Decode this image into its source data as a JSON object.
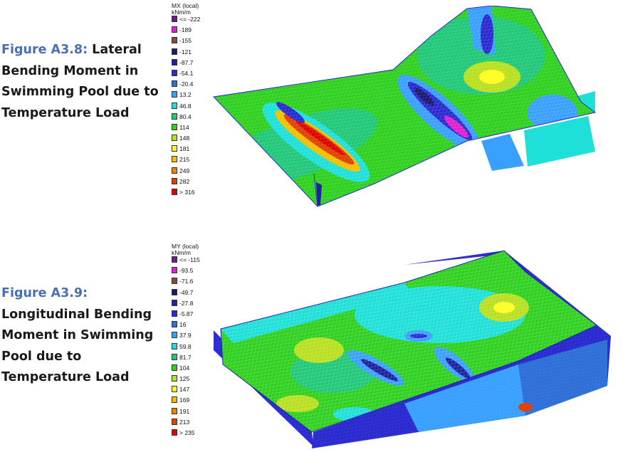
{
  "figure1": {
    "number": "Figure A3.8:",
    "caption_lines": [
      "Lateral",
      "Bending Moment in",
      "Swimming Pool due to",
      "Temperature Load"
    ],
    "legend": {
      "title_lines": [
        "MX (local)",
        "kNm/m"
      ],
      "entries": [
        {
          "label": "<= -222",
          "color": "#6a1b8c"
        },
        {
          "label": "-189",
          "color": "#e020d0"
        },
        {
          "label": "-155",
          "color": "#8a4a3a"
        },
        {
          "label": "-121",
          "color": "#1a1a6a"
        },
        {
          "label": "-87.7",
          "color": "#2020a0"
        },
        {
          "label": "-54.1",
          "color": "#2a2ad0"
        },
        {
          "label": "-20.4",
          "color": "#2f6fd8"
        },
        {
          "label": "13.2",
          "color": "#3aa0ff"
        },
        {
          "label": "46.8",
          "color": "#1fe0d8"
        },
        {
          "label": "80.4",
          "color": "#20c878"
        },
        {
          "label": "114",
          "color": "#30d020"
        },
        {
          "label": "148",
          "color": "#b8e020"
        },
        {
          "label": "181",
          "color": "#ffff20"
        },
        {
          "label": "215",
          "color": "#f0c000"
        },
        {
          "label": "249",
          "color": "#f08000"
        },
        {
          "label": "282",
          "color": "#e04000"
        },
        {
          "label": "> 316",
          "color": "#e00000"
        }
      ]
    }
  },
  "figure2": {
    "number": "Figure A3.9:",
    "caption_lines": [
      "Longitudinal Bending",
      "Moment in Swimming",
      "Pool due to",
      "Temperature Load"
    ],
    "legend": {
      "title_lines": [
        "MY (local)",
        "kNm/m"
      ],
      "entries": [
        {
          "label": "<= -115",
          "color": "#6a1b8c"
        },
        {
          "label": "-93.5",
          "color": "#e020d0"
        },
        {
          "label": "-71.6",
          "color": "#8a4a3a"
        },
        {
          "label": "-49.7",
          "color": "#1a1a6a"
        },
        {
          "label": "-27.8",
          "color": "#2020a0"
        },
        {
          "label": "-5.87",
          "color": "#2a2ad0"
        },
        {
          "label": "16",
          "color": "#2f6fd8"
        },
        {
          "label": "37.9",
          "color": "#3aa0ff"
        },
        {
          "label": "59.8",
          "color": "#1fe0d8"
        },
        {
          "label": "81.7",
          "color": "#20c878"
        },
        {
          "label": "104",
          "color": "#30d020"
        },
        {
          "label": "125",
          "color": "#b8e020"
        },
        {
          "label": "147",
          "color": "#ffff20"
        },
        {
          "label": "169",
          "color": "#f0c000"
        },
        {
          "label": "191",
          "color": "#f08000"
        },
        {
          "label": "213",
          "color": "#e04000"
        },
        {
          "label": "> 235",
          "color": "#e00000"
        }
      ]
    }
  }
}
